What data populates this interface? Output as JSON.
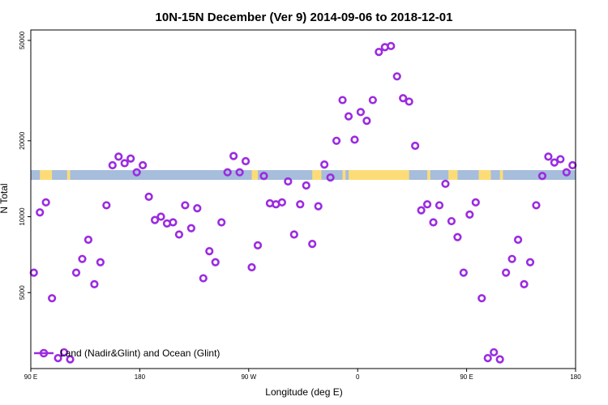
{
  "chart_data": {
    "type": "scatter",
    "title": "10N-15N December (Ver 9)   2014-09-06 to 2018-12-01",
    "xlabel": "Longitude (deg E)",
    "ylabel": "N Total",
    "x_scale": "linear",
    "y_scale": "log",
    "xlim": [
      90,
      450
    ],
    "ylim": [
      2500,
      55000
    ],
    "x_ticks": [
      {
        "value": 90,
        "label": "90 E"
      },
      {
        "value": 162,
        "label": "180"
      },
      {
        "value": 234,
        "label": "90 W"
      },
      {
        "value": 306,
        "label": "0"
      },
      {
        "value": 378,
        "label": "90 E"
      },
      {
        "value": 450,
        "label": "180"
      }
    ],
    "y_ticks": [
      {
        "value": 5000,
        "label": "5000"
      },
      {
        "value": 10000,
        "label": "10000"
      },
      {
        "value": 20000,
        "label": "20000"
      },
      {
        "value": 50000,
        "label": "50000"
      }
    ],
    "series": [
      {
        "name": "Land (Nadir&Glint) and Ocean (Glint)",
        "color": "#9b2be0",
        "marker": "ring",
        "x": [
          92,
          96,
          100,
          104,
          108,
          112,
          116,
          120,
          124,
          128,
          132,
          136,
          140,
          144,
          148,
          152,
          156,
          160,
          164,
          168,
          172,
          176,
          180,
          184,
          188,
          192,
          196,
          200,
          204,
          208,
          212,
          216,
          220,
          224,
          228,
          232,
          236,
          240,
          244,
          248,
          252,
          256,
          260,
          264,
          268,
          272,
          276,
          280,
          284,
          288,
          292,
          296,
          300,
          304,
          308,
          312,
          316,
          320,
          324,
          328,
          332,
          336,
          340,
          344,
          348,
          352,
          356,
          360,
          364,
          368,
          372,
          376,
          380,
          384,
          388,
          392,
          396,
          400,
          404,
          408,
          412,
          416,
          420,
          424,
          428,
          432,
          436,
          440,
          444,
          448
        ],
        "y": [
          6000,
          10400,
          11400,
          4750,
          2750,
          2900,
          2720,
          6000,
          6800,
          8100,
          5400,
          6600,
          11100,
          16000,
          17300,
          16300,
          17000,
          15000,
          16000,
          12000,
          9700,
          10000,
          9400,
          9500,
          8500,
          11100,
          9000,
          10800,
          5700,
          7300,
          6600,
          9500,
          15000,
          17400,
          15000,
          16600,
          6300,
          7700,
          14500,
          11300,
          11200,
          11400,
          13800,
          8500,
          11200,
          13300,
          7800,
          11000,
          16100,
          14300,
          20000,
          29000,
          25000,
          20200,
          26000,
          24000,
          29000,
          45000,
          47000,
          47500,
          36000,
          29500,
          28600,
          19100,
          10600,
          11200,
          9500,
          11100,
          13500,
          9600,
          8300,
          6000,
          10200,
          11400,
          4750,
          2750,
          2900,
          2720,
          6000,
          6800,
          8100,
          5400,
          6600,
          11100,
          14500,
          17300,
          16400,
          16900,
          15000,
          16000
        ]
      }
    ],
    "legend": {
      "position": "bottom-left"
    },
    "band": {
      "y_range": [
        14000,
        15300
      ],
      "colors": {
        "ocean": "#a6bddb",
        "land": "#fddc78"
      },
      "land_segments": [
        [
          96,
          104
        ],
        [
          114,
          116
        ],
        [
          236,
          240
        ],
        [
          276,
          282
        ],
        [
          296,
          298
        ],
        [
          300,
          340
        ],
        [
          352,
          354
        ],
        [
          366,
          372
        ],
        [
          386,
          394
        ],
        [
          400,
          402
        ]
      ]
    }
  }
}
